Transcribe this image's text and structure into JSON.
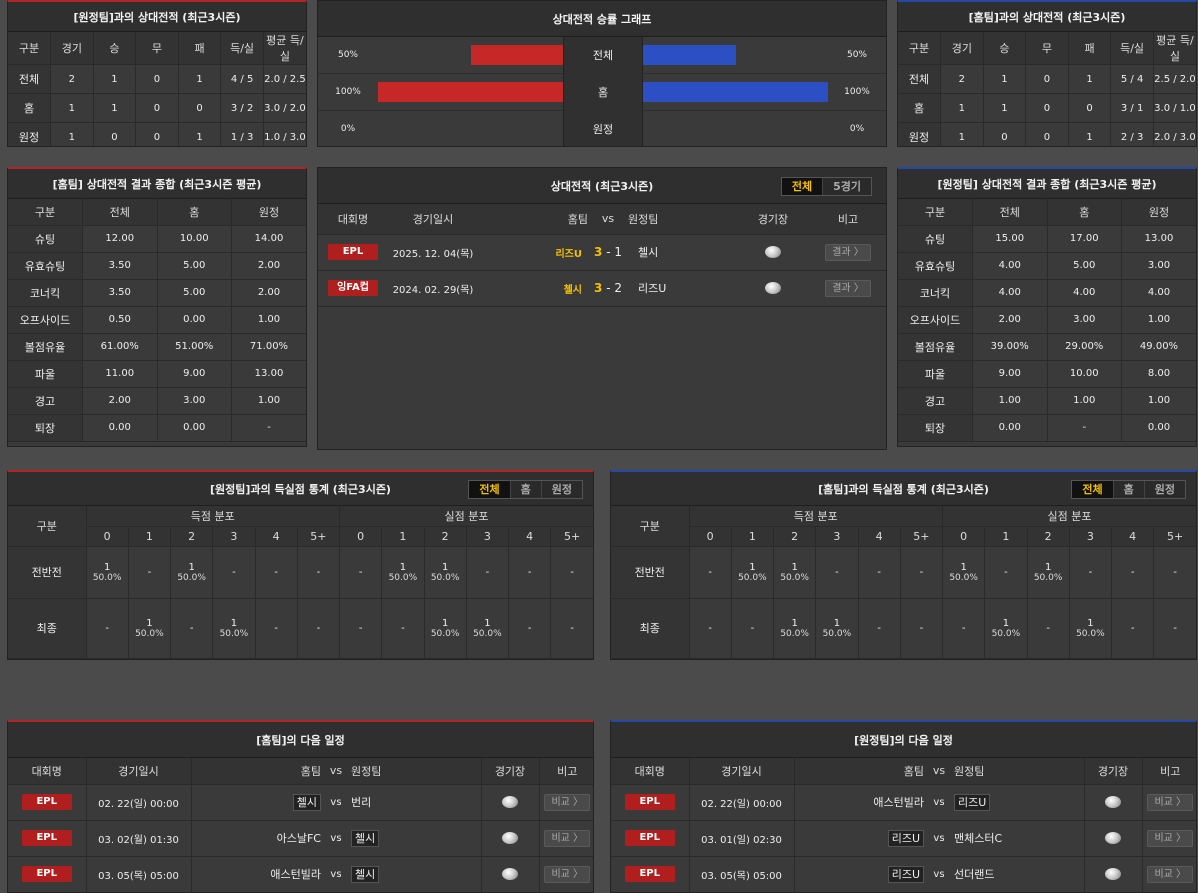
{
  "h2h_away": {
    "title": "[원정팀]과의 상대전적 (최근3시즌)",
    "headers": [
      "구분",
      "경기",
      "승",
      "무",
      "패",
      "득/실",
      "평균 득/실"
    ],
    "rows": [
      [
        "전체",
        "2",
        "1",
        "0",
        "1",
        "4 / 5",
        "2.0 / 2.5"
      ],
      [
        "홈",
        "1",
        "1",
        "0",
        "0",
        "3 / 2",
        "3.0 / 2.0"
      ],
      [
        "원정",
        "1",
        "0",
        "0",
        "1",
        "1 / 3",
        "1.0 / 3.0"
      ]
    ]
  },
  "h2h_home": {
    "title": "[홈팀]과의 상대전적 (최근3시즌)",
    "headers": [
      "구분",
      "경기",
      "승",
      "무",
      "패",
      "득/실",
      "평균 득/실"
    ],
    "rows": [
      [
        "전체",
        "2",
        "1",
        "0",
        "1",
        "5 / 4",
        "2.5 / 2.0"
      ],
      [
        "홈",
        "1",
        "1",
        "0",
        "0",
        "3 / 1",
        "3.0 / 1.0"
      ],
      [
        "원정",
        "1",
        "0",
        "0",
        "1",
        "2 / 3",
        "2.0 / 3.0"
      ]
    ]
  },
  "graph": {
    "title": "상대전적 승률 그래프",
    "rows": [
      {
        "label": "전체",
        "left": "50%",
        "right": "50%",
        "left_val": 50,
        "right_val": 50
      },
      {
        "label": "홈",
        "left": "100%",
        "right": "100%",
        "left_val": 100,
        "right_val": 100
      },
      {
        "label": "원정",
        "left": "0%",
        "right": "0%",
        "left_val": 0,
        "right_val": 0
      }
    ]
  },
  "home_summary": {
    "title": "[홈팀] 상대전적 결과 종합 (최근3시즌 평균)",
    "headers": [
      "구분",
      "전체",
      "홈",
      "원정"
    ],
    "rows": [
      [
        "슈팅",
        "12.00",
        "10.00",
        "14.00"
      ],
      [
        "유효슈팅",
        "3.50",
        "5.00",
        "2.00"
      ],
      [
        "코너킥",
        "3.50",
        "5.00",
        "2.00"
      ],
      [
        "오프사이드",
        "0.50",
        "0.00",
        "1.00"
      ],
      [
        "볼점유율",
        "61.00%",
        "51.00%",
        "71.00%"
      ],
      [
        "파울",
        "11.00",
        "9.00",
        "13.00"
      ],
      [
        "경고",
        "2.00",
        "3.00",
        "1.00"
      ],
      [
        "퇴장",
        "0.00",
        "0.00",
        "-"
      ]
    ]
  },
  "away_summary": {
    "title": "[원정팀] 상대전적 결과 종합 (최근3시즌 평균)",
    "headers": [
      "구분",
      "전체",
      "홈",
      "원정"
    ],
    "rows": [
      [
        "슈팅",
        "15.00",
        "17.00",
        "13.00"
      ],
      [
        "유효슈팅",
        "4.00",
        "5.00",
        "3.00"
      ],
      [
        "코너킥",
        "4.00",
        "4.00",
        "4.00"
      ],
      [
        "오프사이드",
        "2.00",
        "3.00",
        "1.00"
      ],
      [
        "볼점유율",
        "39.00%",
        "29.00%",
        "49.00%"
      ],
      [
        "파울",
        "9.00",
        "10.00",
        "8.00"
      ],
      [
        "경고",
        "1.00",
        "1.00",
        "1.00"
      ],
      [
        "퇴장",
        "0.00",
        "-",
        "0.00"
      ]
    ]
  },
  "h2h_list": {
    "title": "상대전적 (최근3시즌)",
    "tabs": [
      "전체",
      "5경기"
    ],
    "headers": {
      "league": "대회명",
      "date": "경기일시",
      "home": "홈팀",
      "vs": "vs",
      "away": "원정팀",
      "venue": "경기장",
      "note": "비고"
    },
    "matches": [
      {
        "league": "EPL",
        "date": "2025. 12. 04(목)",
        "home": "리즈U",
        "hs": "3",
        "sep": "-",
        "as": "1",
        "away": "첼시",
        "btn": "결과 〉"
      },
      {
        "league": "잉FA컵",
        "date": "2024. 02. 29(목)",
        "home": "첼시",
        "hs": "3",
        "sep": "-",
        "as": "2",
        "away": "리즈U",
        "btn": "결과 〉"
      }
    ]
  },
  "goals_away": {
    "title": "[원정팀]과의 득실점 통계 (최근3시즌)",
    "tabs": [
      "전체",
      "홈",
      "원정"
    ],
    "gubun": "구분",
    "scored": "득점 분포",
    "conceded": "실점 분포",
    "cols": [
      "0",
      "1",
      "2",
      "3",
      "4",
      "5+"
    ],
    "rows": [
      {
        "label": "전반전",
        "s": [
          {
            "n": "1",
            "p": "50.0%"
          },
          {
            "n": "-"
          },
          {
            "n": "1",
            "p": "50.0%"
          },
          {
            "n": "-"
          },
          {
            "n": "-"
          },
          {
            "n": "-"
          }
        ],
        "c": [
          {
            "n": "-"
          },
          {
            "n": "1",
            "p": "50.0%"
          },
          {
            "n": "1",
            "p": "50.0%"
          },
          {
            "n": "-"
          },
          {
            "n": "-"
          },
          {
            "n": "-"
          }
        ]
      },
      {
        "label": "최종",
        "s": [
          {
            "n": "-"
          },
          {
            "n": "1",
            "p": "50.0%"
          },
          {
            "n": "-"
          },
          {
            "n": "1",
            "p": "50.0%"
          },
          {
            "n": "-"
          },
          {
            "n": "-"
          }
        ],
        "c": [
          {
            "n": "-"
          },
          {
            "n": "-"
          },
          {
            "n": "1",
            "p": "50.0%"
          },
          {
            "n": "1",
            "p": "50.0%"
          },
          {
            "n": "-"
          },
          {
            "n": "-"
          }
        ]
      }
    ]
  },
  "goals_home": {
    "title": "[홈팀]과의 득실점 통계 (최근3시즌)",
    "tabs": [
      "전체",
      "홈",
      "원정"
    ],
    "gubun": "구분",
    "scored": "득점 분포",
    "conceded": "실점 분포",
    "cols": [
      "0",
      "1",
      "2",
      "3",
      "4",
      "5+"
    ],
    "rows": [
      {
        "label": "전반전",
        "s": [
          {
            "n": "-"
          },
          {
            "n": "1",
            "p": "50.0%"
          },
          {
            "n": "1",
            "p": "50.0%"
          },
          {
            "n": "-"
          },
          {
            "n": "-"
          },
          {
            "n": "-"
          }
        ],
        "c": [
          {
            "n": "1",
            "p": "50.0%"
          },
          {
            "n": "-"
          },
          {
            "n": "1",
            "p": "50.0%"
          },
          {
            "n": "-"
          },
          {
            "n": "-"
          },
          {
            "n": "-"
          }
        ]
      },
      {
        "label": "최종",
        "s": [
          {
            "n": "-"
          },
          {
            "n": "-"
          },
          {
            "n": "1",
            "p": "50.0%"
          },
          {
            "n": "1",
            "p": "50.0%"
          },
          {
            "n": "-"
          },
          {
            "n": "-"
          }
        ],
        "c": [
          {
            "n": "-"
          },
          {
            "n": "1",
            "p": "50.0%"
          },
          {
            "n": "-"
          },
          {
            "n": "1",
            "p": "50.0%"
          },
          {
            "n": "-"
          },
          {
            "n": "-"
          }
        ]
      }
    ]
  },
  "next_home": {
    "title": "[홈팀]의 다음 일정",
    "headers": {
      "league": "대회명",
      "date": "경기일시",
      "home": "홈팀",
      "vs": "vs",
      "away": "원정팀",
      "venue": "경기장",
      "note": "비고"
    },
    "matches": [
      {
        "league": "EPL",
        "date": "02. 22(일) 00:00",
        "home": "첼시",
        "vs": "vs",
        "away": "번리",
        "hl": "home",
        "btn": "비교 〉"
      },
      {
        "league": "EPL",
        "date": "03. 02(월) 01:30",
        "home": "아스날FC",
        "vs": "vs",
        "away": "첼시",
        "hl": "away",
        "btn": "비교 〉"
      },
      {
        "league": "EPL",
        "date": "03. 05(목) 05:00",
        "home": "애스턴빌라",
        "vs": "vs",
        "away": "첼시",
        "hl": "away",
        "btn": "비교 〉"
      }
    ]
  },
  "next_away": {
    "title": "[원정팀]의 다음 일정",
    "headers": {
      "league": "대회명",
      "date": "경기일시",
      "home": "홈팀",
      "vs": "vs",
      "away": "원정팀",
      "venue": "경기장",
      "note": "비고"
    },
    "matches": [
      {
        "league": "EPL",
        "date": "02. 22(일) 00:00",
        "home": "애스턴빌라",
        "vs": "vs",
        "away": "리즈U",
        "hl": "away",
        "btn": "비교 〉"
      },
      {
        "league": "EPL",
        "date": "03. 01(일) 02:30",
        "home": "리즈U",
        "vs": "vs",
        "away": "맨체스터C",
        "hl": "home",
        "btn": "비교 〉"
      },
      {
        "league": "EPL",
        "date": "03. 05(목) 05:00",
        "home": "리즈U",
        "vs": "vs",
        "away": "선더랜드",
        "hl": "home",
        "btn": "비교 〉"
      }
    ]
  },
  "colors": {
    "red_bar": "#c62828",
    "blue_bar": "#2c4fc4",
    "highlight": "#f3c000",
    "badge": "#b01e1e"
  }
}
